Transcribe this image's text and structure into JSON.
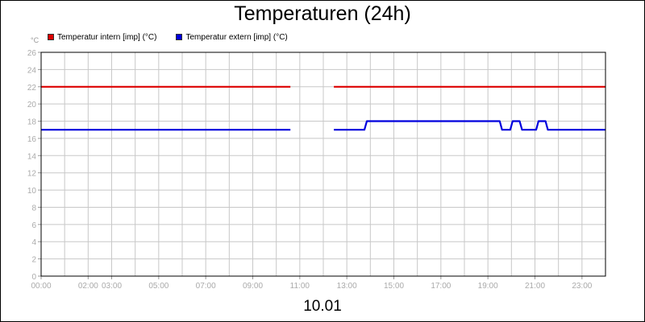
{
  "chart_data": {
    "type": "line",
    "title": "Temperaturen (24h)",
    "xlabel": "10.01",
    "ylabel": "°C",
    "xlim": [
      0,
      24
    ],
    "ylim": [
      0,
      26
    ],
    "y_ticks": [
      "0",
      "2",
      "4",
      "6",
      "8",
      "10",
      "12",
      "14",
      "16",
      "18",
      "20",
      "22",
      "24",
      "26"
    ],
    "x_tick_labels": [
      {
        "x": 0,
        "label": "00:00"
      },
      {
        "x": 2,
        "label": "02:00"
      },
      {
        "x": 3,
        "label": "03:00"
      },
      {
        "x": 5,
        "label": "05:00"
      },
      {
        "x": 7,
        "label": "07:00"
      },
      {
        "x": 9,
        "label": "09:00"
      },
      {
        "x": 11,
        "label": "11:00"
      },
      {
        "x": 13,
        "label": "13:00"
      },
      {
        "x": 15,
        "label": "15:00"
      },
      {
        "x": 17,
        "label": "17:00"
      },
      {
        "x": 19,
        "label": "19:00"
      },
      {
        "x": 21,
        "label": "21:00"
      },
      {
        "x": 23,
        "label": "23:00"
      }
    ],
    "grid": true,
    "legend_position": "top-left",
    "series": [
      {
        "name": "Temperatur intern [imp] (°C)",
        "color": "#dd0000",
        "segments": [
          [
            [
              0,
              22
            ],
            [
              10.6,
              22
            ]
          ],
          [
            [
              12.45,
              22
            ],
            [
              24,
              22
            ]
          ]
        ]
      },
      {
        "name": "Temperatur extern [imp] (°C)",
        "color": "#0000dd",
        "segments": [
          [
            [
              0,
              17
            ],
            [
              10.6,
              17
            ]
          ],
          [
            [
              12.45,
              17
            ],
            [
              13.75,
              17
            ],
            [
              13.85,
              18
            ],
            [
              19.5,
              18
            ],
            [
              19.6,
              17
            ],
            [
              19.95,
              17
            ],
            [
              20.05,
              18
            ],
            [
              20.35,
              18
            ],
            [
              20.45,
              17
            ],
            [
              21.05,
              17
            ],
            [
              21.15,
              18
            ],
            [
              21.45,
              18
            ],
            [
              21.55,
              17
            ],
            [
              24,
              17
            ]
          ]
        ]
      }
    ]
  }
}
